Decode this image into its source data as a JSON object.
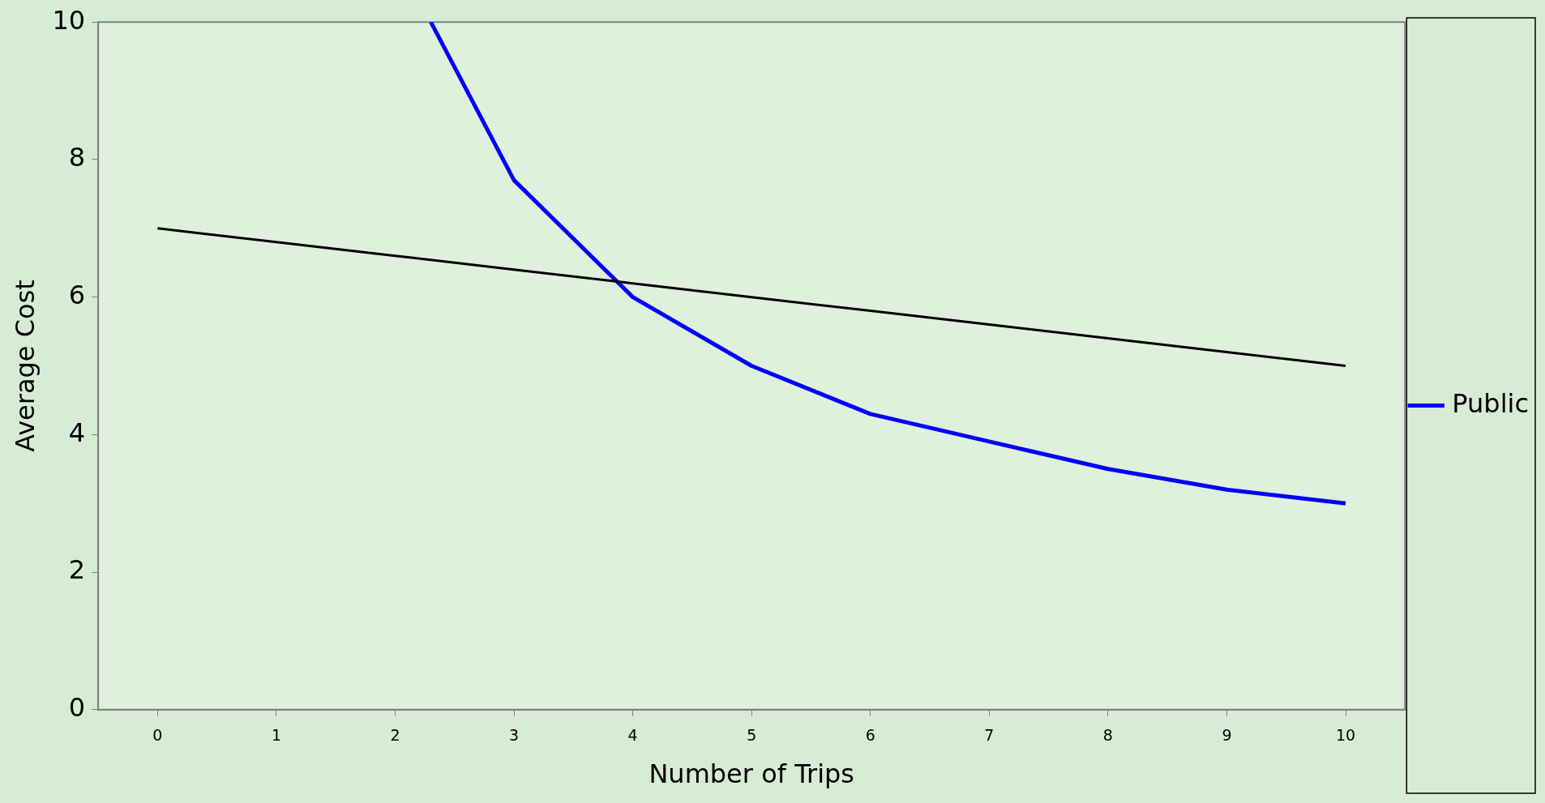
{
  "chart_data": {
    "type": "line",
    "xlabel": "Number of Trips",
    "ylabel": "Average Cost",
    "xlim": [
      -0.5,
      10.5
    ],
    "xticks": [
      0,
      1,
      2,
      3,
      4,
      5,
      6,
      7,
      8,
      9,
      10
    ],
    "ylim": [
      0,
      10
    ],
    "yticks": [
      0,
      2,
      4,
      6,
      8,
      10
    ],
    "grid": false,
    "legend": "right",
    "marker": "none",
    "line_style": "solid",
    "series": [
      {
        "color": "#000000",
        "x": [
          0,
          1,
          2,
          3,
          4,
          5,
          6,
          7,
          8,
          9,
          10
        ],
        "values": [
          7,
          6.8,
          6.6,
          6.4,
          6.2,
          6,
          5.8,
          5.6,
          5.4,
          5.2,
          5
        ]
      },
      {
        "name": "Public",
        "color": "#0000ff",
        "x": [
          2.3,
          3,
          4,
          5,
          6,
          7,
          8,
          9,
          10
        ],
        "values": [
          10,
          7.7,
          6,
          5,
          4.3,
          3.9,
          3.5,
          3.2,
          3
        ]
      }
    ]
  }
}
